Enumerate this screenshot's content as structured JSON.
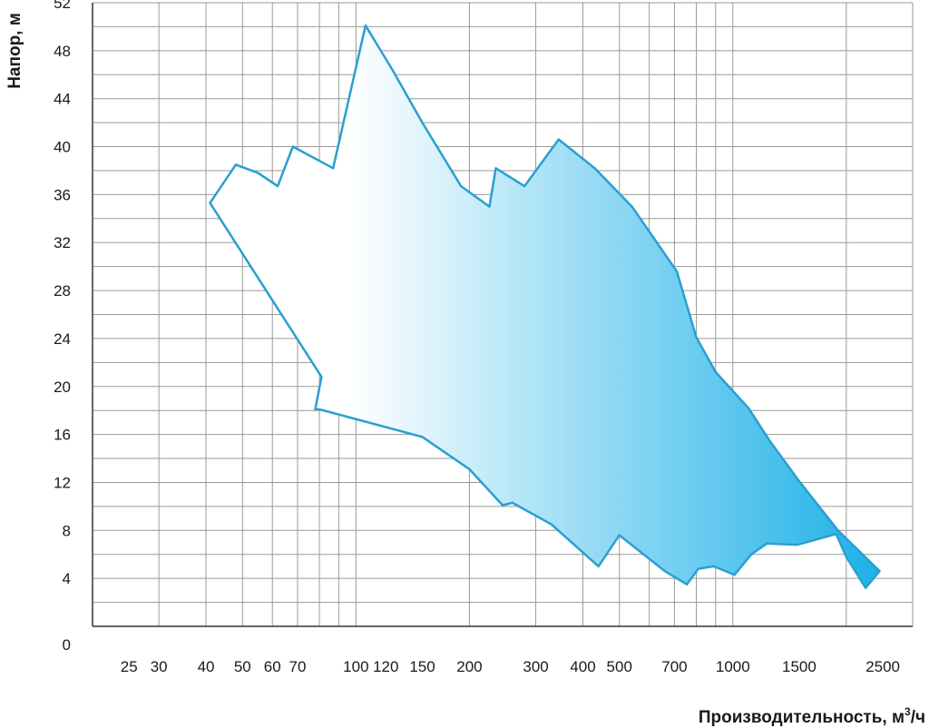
{
  "chart_data": {
    "type": "area",
    "xscale": "log",
    "xlabel": "Производительность, м³/ч",
    "xlabel_main": "Производительность, м",
    "xlabel_sup": "3",
    "xlabel_tail": "/ч",
    "ylabel": "Напор, м",
    "xlim": [
      20,
      3000
    ],
    "ylim": [
      0,
      52
    ],
    "grid": true,
    "x_ticks": [
      25,
      30,
      40,
      50,
      60,
      70,
      100,
      120,
      150,
      200,
      300,
      400,
      500,
      700,
      1000,
      1500,
      2500
    ],
    "y_ticks": [
      0,
      4,
      8,
      12,
      16,
      20,
      24,
      28,
      32,
      36,
      40,
      44,
      48,
      52
    ],
    "colors": {
      "outline": "#2a9fd0",
      "fill_start": "#ffffff",
      "fill_end": "#20b2e8",
      "grid": "#9a9a9a"
    },
    "series": [
      {
        "x": [
          41,
          48,
          55,
          62,
          68,
          87,
          106,
          125,
          150,
          190,
          226,
          235,
          280,
          345,
          430,
          540,
          710,
          800,
          900,
          1100,
          1250,
          1500,
          1900,
          2450,
          2250,
          2000,
          1880,
          1480,
          1230,
          1120,
          1010,
          890,
          810,
          755,
          660,
          500,
          440,
          330,
          260,
          245,
          200,
          150,
          80,
          78,
          81
        ],
        "y": [
          35.3,
          38.5,
          37.8,
          36.7,
          40.0,
          38.2,
          50.1,
          46.4,
          42.0,
          36.7,
          35.0,
          38.2,
          36.7,
          40.6,
          38.2,
          35.0,
          29.6,
          24.1,
          21.2,
          18.2,
          15.5,
          12.1,
          8.0,
          4.6,
          3.2,
          5.8,
          7.7,
          6.8,
          6.9,
          6.0,
          4.3,
          5.0,
          4.8,
          3.5,
          4.6,
          7.6,
          5.0,
          8.5,
          10.3,
          10.1,
          13.1,
          15.8,
          18.1,
          18.1,
          20.8
        ]
      }
    ]
  }
}
